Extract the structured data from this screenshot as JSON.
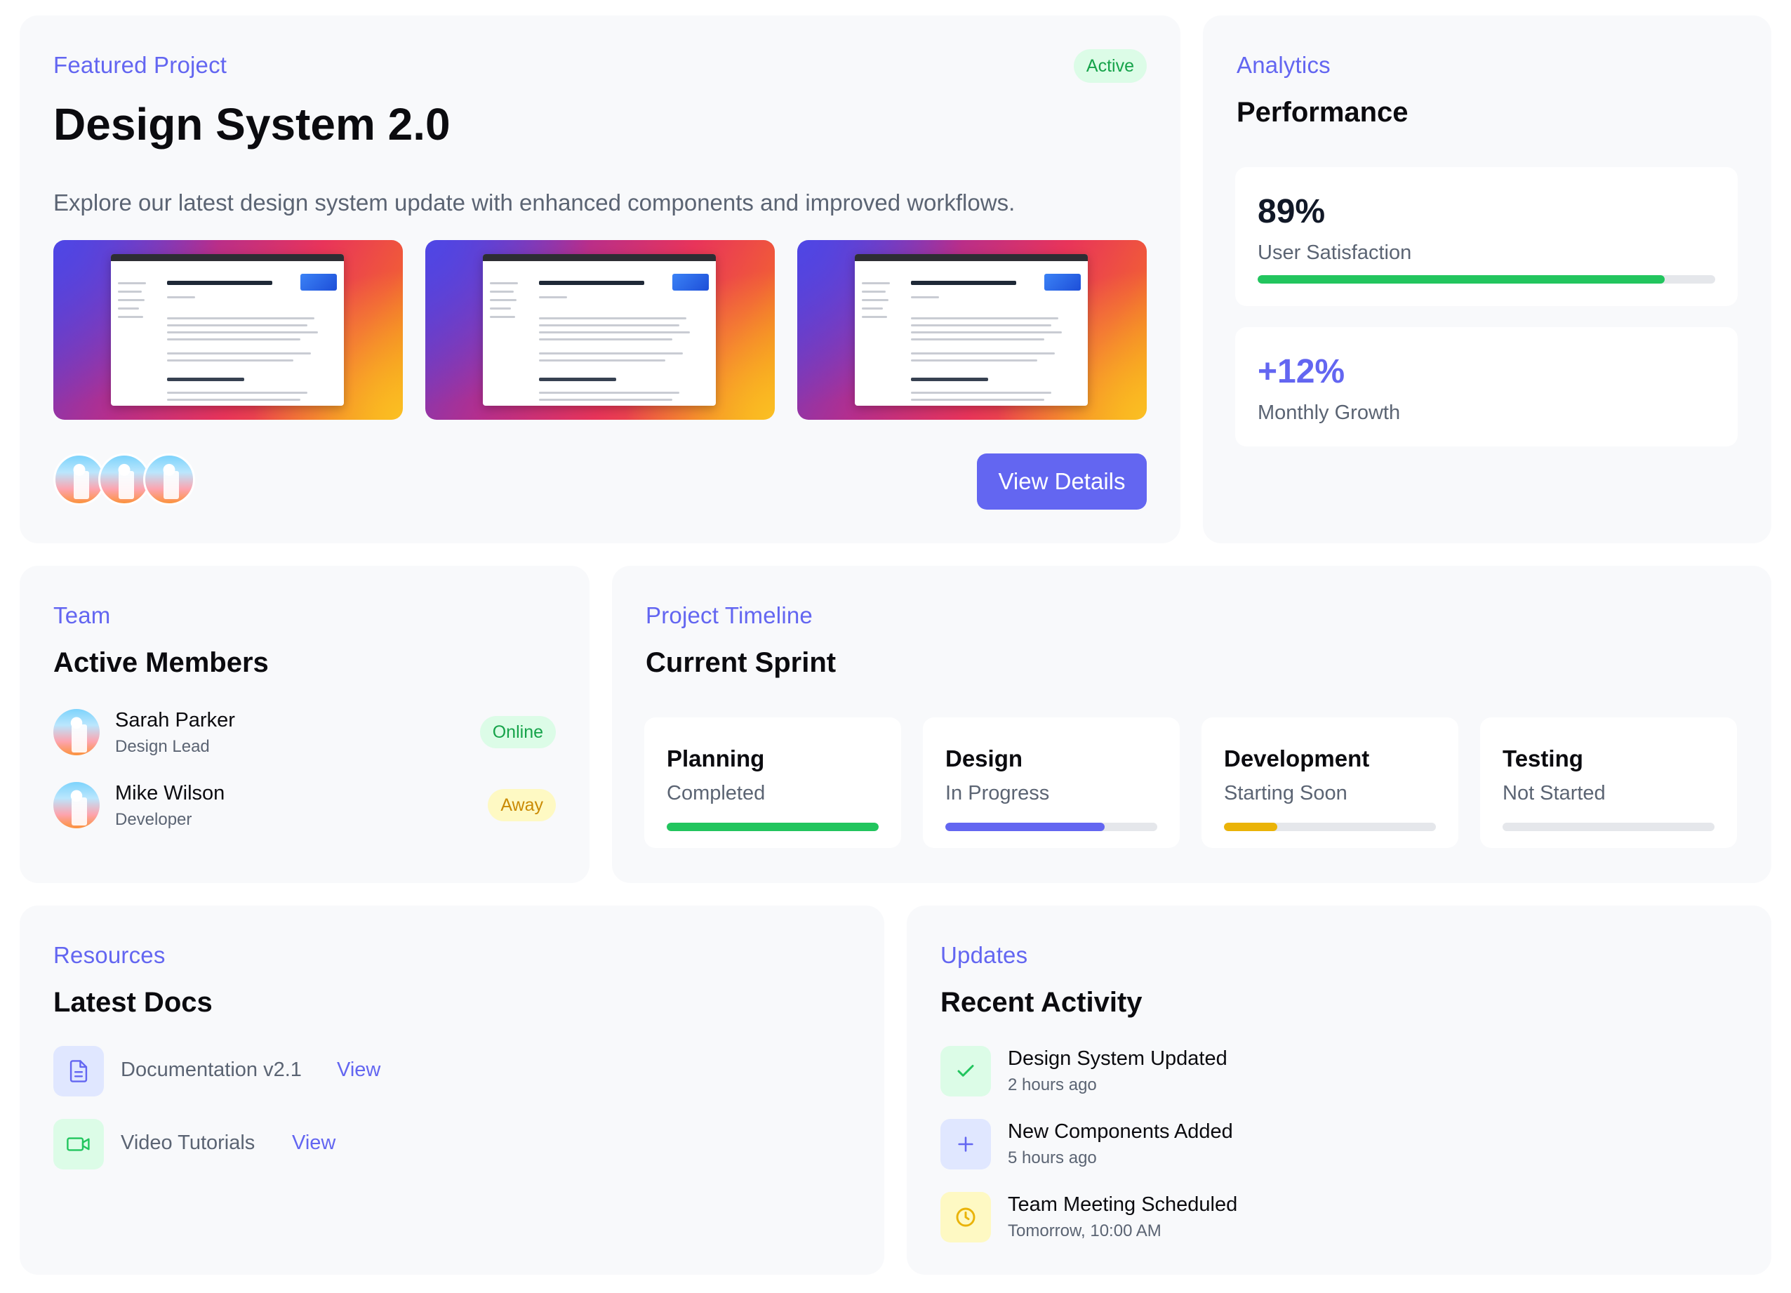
{
  "featured": {
    "eyebrow": "Featured Project",
    "status": "Active",
    "title": "Design System 2.0",
    "description": "Explore our latest design system update with enhanced components and improved workflows.",
    "thumbnails": 3,
    "avatar_count": 3,
    "button_label": "View Details"
  },
  "analytics": {
    "eyebrow": "Analytics",
    "title": "Performance",
    "metrics": [
      {
        "value": "89%",
        "label": "User Satisfaction",
        "progress_percent": 89,
        "color": "#22c55e"
      },
      {
        "value": "+12%",
        "label": "Monthly Growth",
        "color": "#6366f1"
      }
    ]
  },
  "team": {
    "eyebrow": "Team",
    "title": "Active Members",
    "members": [
      {
        "name": "Sarah Parker",
        "role": "Design Lead",
        "status": "Online",
        "status_bg": "#dcfce7",
        "status_color": "#16a34a"
      },
      {
        "name": "Mike Wilson",
        "role": "Developer",
        "status": "Away",
        "status_bg": "#fef9c3",
        "status_color": "#ca8a04"
      }
    ]
  },
  "timeline": {
    "eyebrow": "Project Timeline",
    "title": "Current Sprint",
    "phases": [
      {
        "name": "Planning",
        "status": "Completed",
        "progress_percent": 100,
        "color": "#22c55e"
      },
      {
        "name": "Design",
        "status": "In Progress",
        "progress_percent": 75,
        "color": "#6366f1"
      },
      {
        "name": "Development",
        "status": "Starting Soon",
        "progress_percent": 25,
        "color": "#eab308"
      },
      {
        "name": "Testing",
        "status": "Not Started",
        "progress_percent": 0,
        "color": "#e5e7eb"
      }
    ]
  },
  "resources": {
    "eyebrow": "Resources",
    "title": "Latest Docs",
    "items": [
      {
        "title": "Documentation v2.1",
        "link": "View",
        "icon": "document-icon",
        "icon_bg": "#e0e7ff",
        "icon_color": "#6366f1"
      },
      {
        "title": "Video Tutorials",
        "link": "View",
        "icon": "video-icon",
        "icon_bg": "#dcfce7",
        "icon_color": "#22c55e"
      }
    ]
  },
  "updates": {
    "eyebrow": "Updates",
    "title": "Recent Activity",
    "items": [
      {
        "title": "Design System Updated",
        "time": "2 hours ago",
        "icon": "check-icon",
        "icon_bg": "#dcfce7",
        "icon_color": "#22c55e"
      },
      {
        "title": "New Components Added",
        "time": "5 hours ago",
        "icon": "plus-icon",
        "icon_bg": "#e0e7ff",
        "icon_color": "#6366f1"
      },
      {
        "title": "Team Meeting Scheduled",
        "time": "Tomorrow, 10:00 AM",
        "icon": "clock-icon",
        "icon_bg": "#fef9c3",
        "icon_color": "#eab308"
      }
    ]
  }
}
